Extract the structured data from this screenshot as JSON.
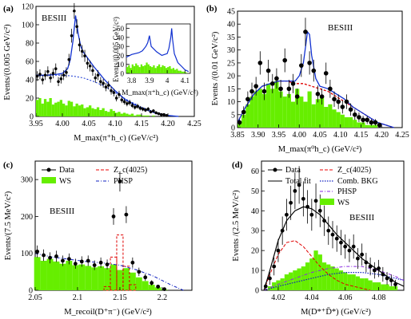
{
  "figure": {
    "panels": [
      {
        "id": "a",
        "label": "(a)",
        "tag": "BESIII",
        "xlabel": "M_max(π⁺h_c) (GeV/c²)",
        "ylabel": "Events/(0.005 GeV/c²)",
        "inset": {
          "xlabel": "M_max(π⁺h_c) (GeV/c²)",
          "ylabel": "Events/(0.005 GeV/c²)"
        }
      },
      {
        "id": "b",
        "label": "(b)",
        "tag": "BESIII",
        "xlabel": "M_max(π⁰h_c) (GeV/c²)",
        "ylabel": "Events /(0.01 GeV/c²)"
      },
      {
        "id": "c",
        "label": "(c)",
        "tag": "BESIII",
        "xlabel": "M_recoil(D⁺π⁻) (GeV/c²)",
        "ylabel": "Events/(7.5 MeV/c²)",
        "legend": {
          "data": "Data",
          "zc": "Z_c(4025)",
          "ws": "WS",
          "phsp": "PHSP"
        }
      },
      {
        "id": "d",
        "label": "(d)",
        "tag": "BESIII",
        "xlabel": "M(D*⁺D̄*) (GeV/c²)",
        "ylabel": "Events /(2.5 MeV/c²)",
        "legend": {
          "data": "Data",
          "zc": "Z_c(4025)",
          "total": "Total fit",
          "comb": "Comb. BKG",
          "phsp": "PHSP",
          "ws": "WS"
        }
      }
    ]
  },
  "chart_data": [
    {
      "panel": "a",
      "type": "scatter",
      "xlim": [
        3.95,
        4.25
      ],
      "ylim": [
        0,
        120
      ],
      "xticks": [
        3.95,
        4.0,
        4.05,
        4.1,
        4.15,
        4.2,
        4.25
      ],
      "yticks": [
        0,
        20,
        40,
        60,
        80,
        100,
        120
      ],
      "data": {
        "x": [
          3.9525,
          3.9575,
          3.9625,
          3.9675,
          3.9725,
          3.9775,
          3.9825,
          3.9875,
          3.9925,
          3.9975,
          4.0025,
          4.0075,
          4.0125,
          4.0175,
          4.0225,
          4.0275,
          4.0325,
          4.0375,
          4.0425,
          4.0475,
          4.0525,
          4.0575,
          4.0625,
          4.0675,
          4.0725,
          4.0775,
          4.0825,
          4.0875,
          4.0925,
          4.0975,
          4.1025,
          4.1075,
          4.1125,
          4.1175,
          4.1225,
          4.1275,
          4.1325,
          4.1375,
          4.1425,
          4.1475,
          4.1525,
          4.1575,
          4.1625,
          4.1675,
          4.1725,
          4.1775,
          4.1825,
          4.1875,
          4.1925,
          4.1975
        ],
        "y": [
          44,
          46,
          40,
          45,
          49,
          42,
          47,
          52,
          38,
          41,
          45,
          48,
          62,
          88,
          115,
          98,
          78,
          71,
          66,
          58,
          55,
          50,
          42,
          45,
          38,
          36,
          32,
          34,
          28,
          26,
          20,
          24,
          18,
          16,
          14,
          15,
          12,
          10,
          11,
          9,
          8,
          7,
          8,
          5,
          6,
          4,
          3,
          2,
          2,
          1
        ]
      },
      "fit_total": {
        "x": [
          3.95,
          3.97,
          3.99,
          4.0,
          4.01,
          4.015,
          4.02,
          4.025,
          4.03,
          4.035,
          4.04,
          4.05,
          4.06,
          4.08,
          4.1,
          4.12,
          4.15,
          4.18,
          4.2,
          4.22
        ],
        "y": [
          45,
          45,
          46,
          47,
          52,
          62,
          82,
          110,
          90,
          76,
          70,
          62,
          54,
          40,
          28,
          18,
          9,
          3,
          1,
          0
        ]
      },
      "fit_background": {
        "x": [
          3.95,
          3.98,
          4.0,
          4.02,
          4.04,
          4.06,
          4.08,
          4.1,
          4.12,
          4.15,
          4.18,
          4.2,
          4.22
        ],
        "y": [
          44,
          45,
          45,
          44,
          42,
          38,
          33,
          26,
          19,
          10,
          4,
          1,
          0
        ]
      },
      "ws_hist": {
        "x": [
          3.9525,
          3.9575,
          3.9625,
          3.9675,
          3.9725,
          3.9775,
          3.9825,
          3.9875,
          3.9925,
          3.9975,
          4.0025,
          4.0075,
          4.0125,
          4.0175,
          4.0225,
          4.0275,
          4.0325,
          4.0375,
          4.0425,
          4.0475,
          4.0525,
          4.0575,
          4.0625,
          4.0675,
          4.0725,
          4.0775,
          4.0825,
          4.0875,
          4.0925,
          4.0975,
          4.1025,
          4.1075,
          4.1125,
          4.1175,
          4.1225,
          4.1275,
          4.1325,
          4.1375,
          4.1425,
          4.1475,
          4.1525,
          4.1575,
          4.1625,
          4.1675,
          4.1725,
          4.1775,
          4.1825,
          4.1875,
          4.1925,
          4.1975
        ],
        "y": [
          18,
          20,
          14,
          19,
          16,
          20,
          13,
          15,
          16,
          18,
          14,
          12,
          17,
          16,
          11,
          14,
          12,
          13,
          9,
          10,
          12,
          9,
          8,
          10,
          7,
          9,
          6,
          5,
          8,
          6,
          4,
          5,
          3,
          4,
          3,
          2,
          3,
          1,
          2,
          2,
          1,
          1,
          1,
          0,
          1,
          0,
          0,
          0,
          0,
          0
        ]
      },
      "inset": {
        "type": "line",
        "xlim": [
          3.77,
          4.13
        ],
        "ylim": [
          0,
          55
        ],
        "xticks": [
          3.8,
          3.9,
          4.0,
          4.1
        ],
        "xticklabels": [
          "3.8",
          "3.9",
          "4",
          "4.1"
        ],
        "yticks": [
          0,
          10,
          20,
          30,
          40,
          50
        ],
        "fit": {
          "x": [
            3.77,
            3.8,
            3.84,
            3.86,
            3.88,
            3.89,
            3.9,
            3.91,
            3.94,
            3.97,
            4.0,
            4.01,
            4.02,
            4.025,
            4.03,
            4.04,
            4.06,
            4.08,
            4.1,
            4.12
          ],
          "y": [
            18,
            21,
            23,
            25,
            30,
            34,
            42,
            30,
            24,
            20,
            22,
            28,
            40,
            50,
            38,
            22,
            12,
            8,
            4,
            2
          ]
        },
        "ws_hist": {
          "x": [
            3.775,
            3.785,
            3.795,
            3.805,
            3.815,
            3.825,
            3.835,
            3.845,
            3.855,
            3.865,
            3.875,
            3.885,
            3.895,
            3.905,
            3.915,
            3.925,
            3.935,
            3.945,
            3.955,
            3.965,
            3.975,
            3.985,
            3.995,
            4.005,
            4.015,
            4.025,
            4.035,
            4.045,
            4.055,
            4.065,
            4.075,
            4.085,
            4.095,
            4.105
          ],
          "y": [
            7,
            9,
            6,
            10,
            8,
            11,
            9,
            7,
            10,
            8,
            9,
            12,
            10,
            8,
            7,
            9,
            6,
            8,
            10,
            7,
            9,
            8,
            6,
            7,
            8,
            5,
            6,
            4,
            5,
            3,
            3,
            2,
            2,
            1
          ]
        }
      }
    },
    {
      "panel": "b",
      "type": "scatter",
      "xlim": [
        3.85,
        4.25
      ],
      "ylim": [
        0,
        45
      ],
      "xticks": [
        3.85,
        3.9,
        3.95,
        4.0,
        4.05,
        4.1,
        4.15,
        4.2,
        4.25
      ],
      "yticks": [
        0,
        5,
        10,
        15,
        20,
        25,
        30,
        35,
        40,
        45
      ],
      "data": {
        "x": [
          3.855,
          3.865,
          3.875,
          3.885,
          3.895,
          3.905,
          3.915,
          3.925,
          3.935,
          3.945,
          3.955,
          3.965,
          3.975,
          3.985,
          3.995,
          4.005,
          4.015,
          4.025,
          4.035,
          4.045,
          4.055,
          4.065,
          4.075,
          4.085,
          4.095,
          4.105,
          4.115,
          4.125,
          4.135,
          4.145,
          4.155,
          4.165,
          4.175,
          4.185,
          4.195
        ],
        "y": [
          2,
          6,
          11,
          14,
          16,
          25,
          14,
          22,
          17,
          19,
          15,
          26,
          15,
          17,
          12,
          24,
          37,
          25,
          22,
          13,
          12,
          21,
          15,
          11,
          10,
          8,
          10,
          7,
          5,
          4,
          3,
          3,
          2,
          2,
          1
        ]
      },
      "fit_total": {
        "x": [
          3.85,
          3.87,
          3.89,
          3.91,
          3.93,
          3.95,
          3.97,
          3.99,
          4.0,
          4.01,
          4.015,
          4.02,
          4.025,
          4.03,
          4.04,
          4.05,
          4.07,
          4.09,
          4.11,
          4.13,
          4.15,
          4.17,
          4.19,
          4.21,
          4.23
        ],
        "y": [
          2,
          8,
          13,
          16,
          17,
          18,
          18,
          18,
          20,
          25,
          31,
          37,
          36,
          28,
          19,
          16,
          15,
          13,
          11,
          8,
          6,
          4,
          2,
          1,
          0
        ]
      },
      "fit_background": {
        "x": [
          3.85,
          3.87,
          3.89,
          3.91,
          3.93,
          3.95,
          3.97,
          3.99,
          4.01,
          4.03,
          4.05,
          4.07,
          4.09,
          4.11,
          4.13,
          4.15,
          4.17,
          4.19,
          4.21,
          4.23
        ],
        "y": [
          2,
          8,
          13,
          16,
          17,
          18,
          18,
          17,
          17,
          16,
          15,
          14,
          12,
          10,
          8,
          6,
          4,
          2,
          1,
          0
        ]
      },
      "ws_hist": {
        "x": [
          3.855,
          3.865,
          3.875,
          3.885,
          3.895,
          3.905,
          3.915,
          3.925,
          3.935,
          3.945,
          3.955,
          3.965,
          3.975,
          3.985,
          3.995,
          4.005,
          4.015,
          4.025,
          4.035,
          4.045,
          4.055,
          4.065,
          4.075,
          4.085,
          4.095,
          4.105,
          4.115,
          4.125,
          4.135,
          4.145,
          4.155,
          4.165,
          4.175,
          4.185,
          4.195
        ],
        "y": [
          2,
          5,
          9,
          12,
          14,
          15,
          13,
          17,
          15,
          18,
          14,
          12,
          13,
          10,
          15,
          12,
          10,
          14,
          9,
          11,
          12,
          8,
          9,
          7,
          6,
          5,
          4,
          4,
          3,
          2,
          2,
          1,
          1,
          1,
          0
        ]
      }
    },
    {
      "panel": "c",
      "type": "scatter",
      "xlim": [
        2.05,
        2.235
      ],
      "ylim": [
        0,
        350
      ],
      "xticks": [
        2.05,
        2.1,
        2.15,
        2.2
      ],
      "xticklabels": [
        "2.05",
        "2.1",
        "2.15",
        "2.2"
      ],
      "yticks": [
        0,
        100,
        200,
        300
      ],
      "data": {
        "x": [
          2.0525,
          2.06,
          2.0675,
          2.075,
          2.0825,
          2.09,
          2.0975,
          2.105,
          2.1125,
          2.12,
          2.1275,
          2.135,
          2.1425,
          2.15,
          2.1575,
          2.165,
          2.1725,
          2.18,
          2.1875,
          2.195,
          2.2025
        ],
        "y": [
          105,
          95,
          88,
          92,
          80,
          85,
          72,
          78,
          80,
          68,
          75,
          70,
          200,
          295,
          205,
          75,
          50,
          35,
          20,
          10,
          3
        ]
      },
      "ws_hist": {
        "x": [
          2.0525,
          2.06,
          2.0675,
          2.075,
          2.0825,
          2.09,
          2.0975,
          2.105,
          2.1125,
          2.12,
          2.1275,
          2.135,
          2.1425,
          2.15,
          2.1575,
          2.165,
          2.1725,
          2.18,
          2.1875,
          2.195,
          2.2025
        ],
        "y": [
          90,
          80,
          85,
          78,
          72,
          80,
          68,
          70,
          66,
          62,
          65,
          60,
          70,
          55,
          60,
          48,
          35,
          25,
          15,
          8,
          2
        ]
      },
      "zc_hist": {
        "x": [
          2.135,
          2.1425,
          2.15,
          2.1575,
          2.165
        ],
        "y": [
          10,
          90,
          150,
          65,
          15
        ]
      },
      "phsp_curve": {
        "x": [
          2.05,
          2.07,
          2.09,
          2.11,
          2.13,
          2.15,
          2.17,
          2.19,
          2.21,
          2.225
        ],
        "y": [
          100,
          90,
          84,
          78,
          74,
          68,
          55,
          38,
          15,
          0
        ]
      }
    },
    {
      "panel": "d",
      "type": "scatter",
      "xlim": [
        4.01,
        4.095
      ],
      "ylim": [
        0,
        65
      ],
      "xticks": [
        4.02,
        4.04,
        4.06,
        4.08
      ],
      "yticks": [
        0,
        10,
        20,
        30,
        40,
        50,
        60
      ],
      "data": {
        "x": [
          4.0125,
          4.015,
          4.0175,
          4.02,
          4.0225,
          4.025,
          4.0275,
          4.03,
          4.0325,
          4.035,
          4.0375,
          4.04,
          4.0425,
          4.045,
          4.0475,
          4.05,
          4.0525,
          4.055,
          4.0575,
          4.06,
          4.0625,
          4.065,
          4.0675,
          4.07,
          4.0725,
          4.075,
          4.0775,
          4.08,
          4.0825,
          4.085,
          4.0875,
          4.09
        ],
        "y": [
          2,
          6,
          12,
          20,
          30,
          38,
          44,
          50,
          53,
          46,
          42,
          38,
          45,
          40,
          35,
          30,
          28,
          26,
          24,
          22,
          20,
          22,
          16,
          18,
          14,
          12,
          10,
          11,
          8,
          6,
          5,
          3
        ]
      },
      "fit_total": {
        "x": [
          4.0115,
          4.015,
          4.02,
          4.025,
          4.03,
          4.035,
          4.04,
          4.045,
          4.05,
          4.055,
          4.06,
          4.065,
          4.07,
          4.075,
          4.08,
          4.085,
          4.09,
          4.095
        ],
        "y": [
          0,
          10,
          25,
          35,
          40,
          42,
          41,
          38,
          33,
          28,
          24,
          20,
          16,
          13,
          10,
          7,
          4,
          2
        ]
      },
      "zc_curve": {
        "x": [
          4.0115,
          4.015,
          4.02,
          4.025,
          4.03,
          4.035,
          4.04,
          4.045,
          4.05,
          4.055,
          4.06,
          4.065,
          4.07,
          4.075
        ],
        "y": [
          0,
          8,
          18,
          24,
          25,
          22,
          17,
          12,
          8,
          5,
          3,
          2,
          1,
          0
        ]
      },
      "comb_bkg": {
        "x": [
          4.0115,
          4.02,
          4.03,
          4.04,
          4.05,
          4.06,
          4.07,
          4.08,
          4.09,
          4.095
        ],
        "y": [
          0,
          2,
          4,
          6,
          8,
          9,
          9,
          8,
          6,
          5
        ]
      },
      "phsp_curve": {
        "x": [
          4.0115,
          4.02,
          4.03,
          4.04,
          4.05,
          4.06,
          4.07,
          4.08,
          4.09,
          4.095
        ],
        "y": [
          0,
          3,
          6,
          9,
          11,
          12,
          12,
          10,
          7,
          5
        ]
      },
      "ws_hist": {
        "x": [
          4.0125,
          4.015,
          4.0175,
          4.02,
          4.0225,
          4.025,
          4.0275,
          4.03,
          4.0325,
          4.035,
          4.0375,
          4.04,
          4.0425,
          4.045,
          4.0475,
          4.05,
          4.0525,
          4.055,
          4.0575,
          4.06,
          4.0625,
          4.065,
          4.0675,
          4.07,
          4.0725,
          4.075,
          4.0775,
          4.08,
          4.0825,
          4.085,
          4.0875,
          4.09
        ],
        "y": [
          0,
          2,
          4,
          5,
          6,
          8,
          9,
          10,
          11,
          12,
          14,
          16,
          20,
          18,
          14,
          13,
          12,
          11,
          10,
          9,
          8,
          8,
          7,
          6,
          6,
          5,
          4,
          4,
          3,
          3,
          2,
          2
        ]
      }
    }
  ]
}
